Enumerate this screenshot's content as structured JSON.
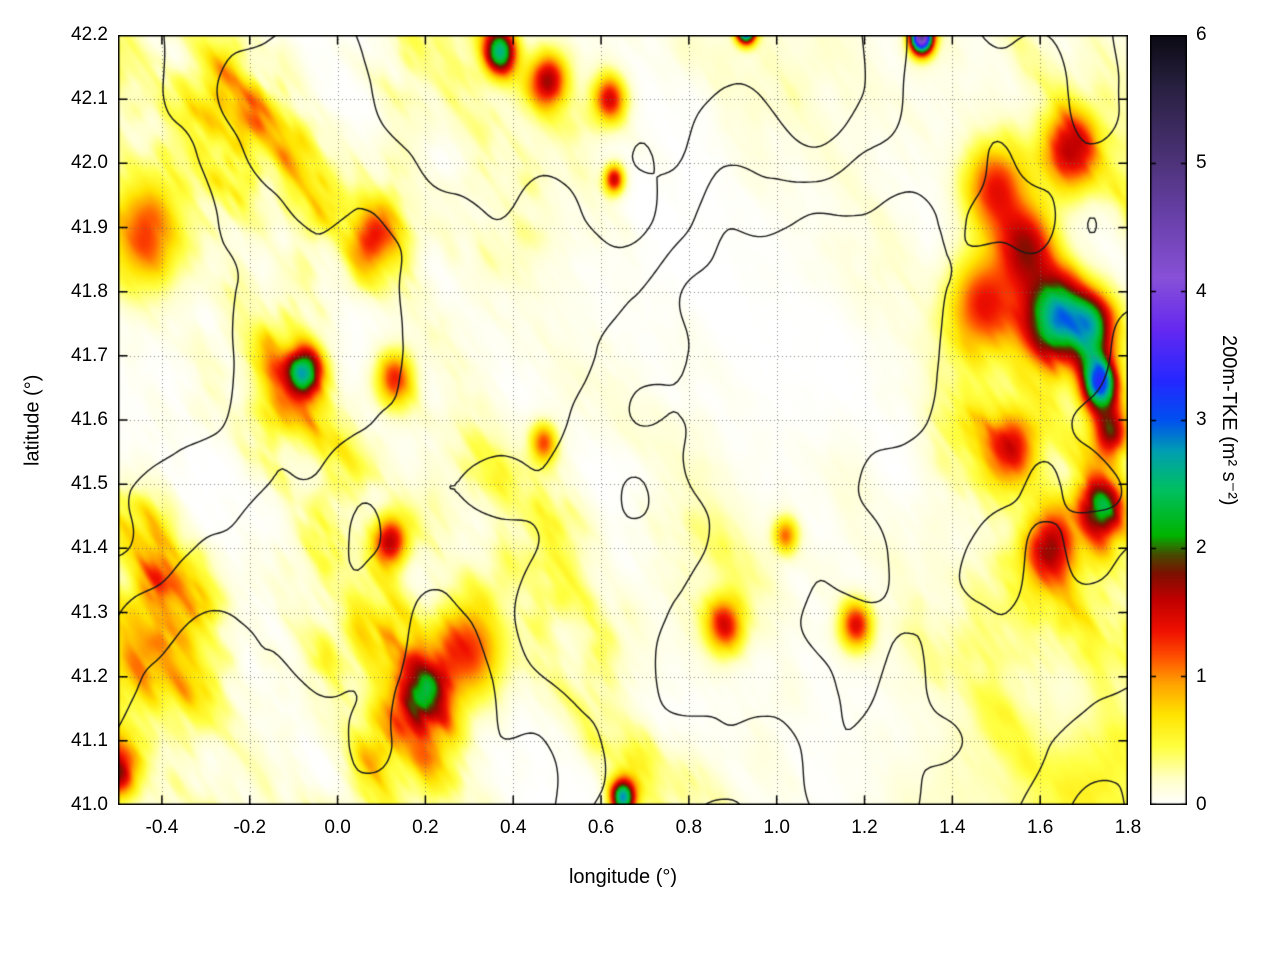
{
  "chart_data": {
    "type": "heatmap",
    "title": "",
    "xlabel": "longitude (°)",
    "ylabel": "latitude (°)",
    "xlim": [
      -0.5,
      1.8
    ],
    "ylim": [
      41.0,
      42.2
    ],
    "grid": "dotted major gridlines",
    "xtick_values": [
      -0.4,
      -0.2,
      0.0,
      0.2,
      0.4,
      0.6,
      0.8,
      1.0,
      1.2,
      1.4,
      1.6,
      1.8
    ],
    "xtick_labels": [
      "-0.4",
      "-0.2",
      "0.0",
      "0.2",
      "0.4",
      "0.6",
      "0.8",
      "1.0",
      "1.2",
      "1.4",
      "1.6",
      "1.8"
    ],
    "ytick_values": [
      41.0,
      41.1,
      41.2,
      41.3,
      41.4,
      41.5,
      41.6,
      41.7,
      41.8,
      41.9,
      42.0,
      42.1,
      42.2
    ],
    "ytick_labels": [
      "41.0",
      "41.1",
      "41.2",
      "41.3",
      "41.4",
      "41.5",
      "41.6",
      "41.7",
      "41.8",
      "41.9",
      "42.0",
      "42.1",
      "42.2"
    ],
    "colorbar": {
      "label": "200m-TKE (m² s⁻²)",
      "range": [
        0,
        6
      ],
      "tick_values": [
        0,
        1,
        2,
        3,
        4,
        5,
        6
      ],
      "tick_labels": [
        "0",
        "1",
        "2",
        "3",
        "4",
        "5",
        "6"
      ],
      "palette_stops": [
        {
          "v": 0.0,
          "c": "#ffffff"
        },
        {
          "v": 0.2,
          "c": "#ffffc8"
        },
        {
          "v": 0.45,
          "c": "#ffff40"
        },
        {
          "v": 0.7,
          "c": "#ffe400"
        },
        {
          "v": 0.95,
          "c": "#ffa000"
        },
        {
          "v": 1.15,
          "c": "#ff5000"
        },
        {
          "v": 1.35,
          "c": "#f01000"
        },
        {
          "v": 1.6,
          "c": "#c00000"
        },
        {
          "v": 1.8,
          "c": "#7c1000"
        },
        {
          "v": 1.95,
          "c": "#464a00"
        },
        {
          "v": 2.1,
          "c": "#00b400"
        },
        {
          "v": 2.45,
          "c": "#00c060"
        },
        {
          "v": 2.75,
          "c": "#00a0b0"
        },
        {
          "v": 3.0,
          "c": "#0050f0"
        },
        {
          "v": 3.3,
          "c": "#2428ff"
        },
        {
          "v": 3.7,
          "c": "#6428f0"
        },
        {
          "v": 4.1,
          "c": "#8850d8"
        },
        {
          "v": 4.6,
          "c": "#6840a8"
        },
        {
          "v": 5.1,
          "c": "#483070"
        },
        {
          "v": 5.6,
          "c": "#282040"
        },
        {
          "v": 6.0,
          "c": "#0c0a14"
        }
      ]
    },
    "contour_overlay": {
      "color": "#1a1a1a",
      "description": "black terrain/orography contour lines overlaid on the TKE field"
    },
    "field_summary": [
      "western third (lon < 0.4): widespread TKE ~0.2-1.5 with diagonal yellow-orange streaks and red filaments",
      "center (lon 0.4-1.4, lat 41.4-42.0): mostly near-zero (white) with faint yellow streaks",
      "eastern edge (lon 1.45-1.8, lat 41.3-42.05): strong TKE 1-3 with isolated peaks ~3-4 (green/purple)",
      "southern band (lat 41.1-41.3, lon 0.0-0.5): moderate streaks up to ~1.5",
      "southeast corner: faint yellow fan ~0.2-0.4"
    ],
    "hotspots_format": "lon_deg, lat_deg, sigma_deg, peak_TKE_added",
    "hotspots": [
      [
        1.63,
        41.76,
        0.05,
        2.3
      ],
      [
        1.72,
        41.745,
        0.038,
        2.0
      ],
      [
        1.735,
        41.655,
        0.03,
        2.9
      ],
      [
        1.76,
        41.58,
        0.028,
        1.6
      ],
      [
        1.74,
        41.46,
        0.034,
        1.7
      ],
      [
        1.57,
        41.87,
        0.045,
        1.5
      ],
      [
        1.5,
        41.96,
        0.05,
        1.3
      ],
      [
        1.67,
        42.02,
        0.045,
        1.4
      ],
      [
        1.54,
        41.56,
        0.04,
        1.3
      ],
      [
        1.47,
        41.78,
        0.055,
        1.35
      ],
      [
        1.62,
        41.4,
        0.04,
        1.3
      ],
      [
        0.65,
        41.012,
        0.02,
        2.6
      ],
      [
        0.37,
        42.175,
        0.026,
        2.3
      ],
      [
        1.33,
        42.197,
        0.018,
        4.6
      ],
      [
        0.93,
        42.21,
        0.015,
        4.0
      ],
      [
        -0.075,
        41.675,
        0.028,
        2.1
      ],
      [
        0.63,
        41.975,
        0.016,
        1.5
      ],
      [
        0.48,
        42.13,
        0.03,
        1.5
      ],
      [
        0.62,
        42.1,
        0.026,
        1.35
      ],
      [
        0.12,
        41.41,
        0.028,
        1.6
      ],
      [
        0.3,
        41.24,
        0.055,
        1.25
      ],
      [
        0.2,
        41.175,
        0.038,
        1.35
      ],
      [
        0.88,
        41.28,
        0.03,
        1.3
      ],
      [
        1.18,
        41.28,
        0.026,
        1.35
      ],
      [
        -0.44,
        41.89,
        0.06,
        1.15
      ],
      [
        0.08,
        41.88,
        0.035,
        1.2
      ],
      [
        0.13,
        41.665,
        0.03,
        1.2
      ],
      [
        0.47,
        41.565,
        0.022,
        1.1
      ],
      [
        1.02,
        41.42,
        0.02,
        1.0
      ],
      [
        -0.5,
        41.05,
        0.03,
        1.5
      ]
    ]
  }
}
